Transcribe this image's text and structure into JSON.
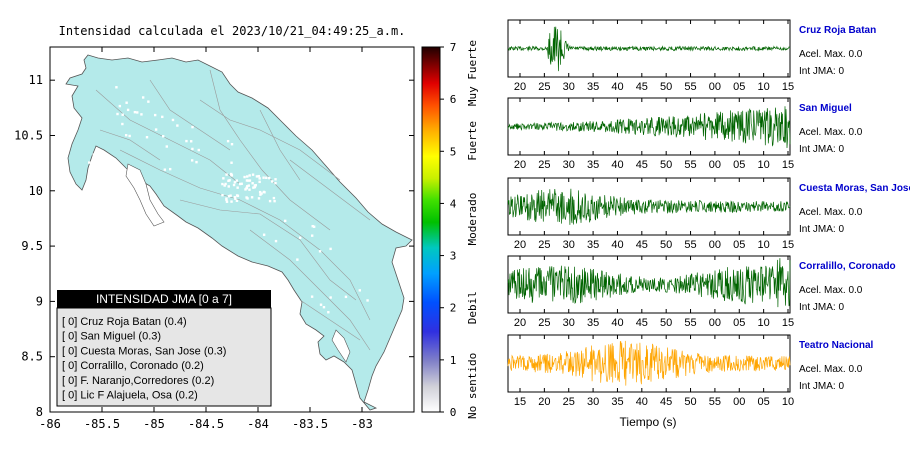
{
  "map": {
    "title": "Intensidad calculada el 2023/10/21_04:49:25_a.m.",
    "x_ticks": [
      "-86",
      "-85.5",
      "-85",
      "-84.5",
      "-84",
      "-83.5",
      "-83"
    ],
    "y_ticks": [
      "8",
      "8.5",
      "9",
      "9.5",
      "10",
      "10.5",
      "11"
    ],
    "legend": {
      "title": "INTENSIDAD JMA [0 a 7]",
      "items": [
        "[ 0]  Cruz Roja Batan (0.4)",
        "[ 0]  San Miguel (0.3)",
        "[ 0]  Cuesta Moras, San Jose (0.3)",
        "[ 0]  Corralillo, Coronado (0.2)",
        "[ 0]  F. Naranjo,Corredores (0.2)",
        "[ 0]  Lic F Alajuela, Osa (0.2)"
      ]
    }
  },
  "colorbar": {
    "ticks": [
      "0",
      "1",
      "2",
      "3",
      "4",
      "5",
      "6",
      "7"
    ],
    "labels": [
      "No sentido",
      "Debil",
      "Moderado",
      "Fuerte",
      "Muy Fuerte"
    ]
  },
  "colors": {
    "land": "#b4eaea",
    "station_trace": "#006400",
    "highlight_trace": "#ffa500",
    "station_name": "#0000cc"
  },
  "chart_data": [
    {
      "type": "map",
      "title": "Intensidad calculada el 2023/10/21_04:49:25_a.m.",
      "xlim": [
        -86,
        -82.5
      ],
      "ylim": [
        8,
        11.3
      ],
      "xticks": [
        -86,
        -85.5,
        -85,
        -84.5,
        -84,
        -83.5,
        -83
      ],
      "yticks": [
        8,
        8.5,
        9,
        9.5,
        10,
        10.5,
        11
      ],
      "legend_placement": "bottom-left",
      "stations": [
        {
          "name": "Cruz Roja Batan",
          "intensity_class": 0,
          "intensity": 0.4
        },
        {
          "name": "San Miguel",
          "intensity_class": 0,
          "intensity": 0.3
        },
        {
          "name": "Cuesta Moras, San Jose",
          "intensity_class": 0,
          "intensity": 0.3
        },
        {
          "name": "Corralillo, Coronado",
          "intensity_class": 0,
          "intensity": 0.2
        },
        {
          "name": "F. Naranjo,Corredores",
          "intensity_class": 0,
          "intensity": 0.2
        },
        {
          "name": "Lic F Alajuela, Osa",
          "intensity_class": 0,
          "intensity": 0.2
        }
      ]
    },
    {
      "type": "line",
      "title": "",
      "xlabel": "Tiempo (s)",
      "grid": false,
      "panels": [
        {
          "name": "Cruz Roja Batan",
          "accel_label": "Acel. Max. 0.0",
          "int_label": "Int JMA: 0",
          "x_ticks": [
            "20",
            "25",
            "30",
            "35",
            "40",
            "45",
            "50",
            "55",
            "00",
            "05",
            "10",
            "15"
          ],
          "color": "#006400",
          "profile": "burst"
        },
        {
          "name": "San Miguel",
          "accel_label": "Acel. Max. 0.0",
          "int_label": "Int JMA: 0",
          "x_ticks": [
            "20",
            "25",
            "30",
            "35",
            "40",
            "45",
            "50",
            "55",
            "00",
            "05",
            "10",
            "15"
          ],
          "color": "#006400",
          "profile": "grow"
        },
        {
          "name": "Cuesta Moras, San Jose",
          "accel_label": "Acel. Max. 0.0",
          "int_label": "Int JMA: 0",
          "x_ticks": [
            "20",
            "25",
            "30",
            "35",
            "40",
            "45",
            "50",
            "55",
            "00",
            "05",
            "10",
            "15"
          ],
          "color": "#006400",
          "profile": "noisy"
        },
        {
          "name": "Corralillo, Coronado",
          "accel_label": "Acel. Max. 0.0",
          "int_label": "Int JMA: 0",
          "x_ticks": [
            "20",
            "25",
            "30",
            "35",
            "40",
            "45",
            "50",
            "55",
            "00",
            "05",
            "10",
            "15"
          ],
          "color": "#006400",
          "profile": "steady"
        },
        {
          "name": "Teatro Nacional",
          "accel_label": "Acel. Max. 0.0",
          "int_label": "Int JMA: 0",
          "x_ticks": [
            "15",
            "20",
            "25",
            "30",
            "35",
            "40",
            "45",
            "50",
            "55",
            "00",
            "05",
            "10"
          ],
          "color": "#ffa500",
          "profile": "mid"
        }
      ]
    }
  ]
}
